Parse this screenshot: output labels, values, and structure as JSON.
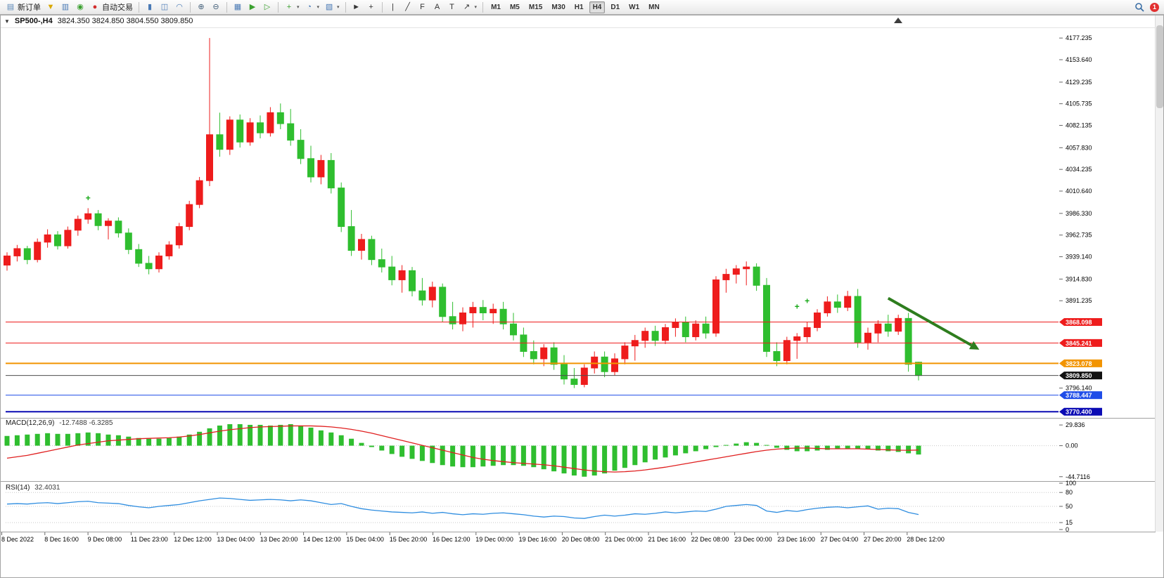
{
  "toolbar": {
    "caret_glyph": "▾",
    "groups": [
      {
        "name": "trade-group",
        "items": [
          {
            "name": "new-order-button",
            "glyph": "▤",
            "color": "#5b87b7",
            "label": "新订单"
          },
          {
            "name": "favorites-icon",
            "glyph": "▼",
            "color": "#d9a800"
          },
          {
            "name": "depth-of-market-icon",
            "glyph": "▥",
            "color": "#4a7ab5"
          },
          {
            "name": "community-icon",
            "glyph": "◉",
            "color": "#3aa02f"
          },
          {
            "name": "autotrade-button",
            "glyph": "●",
            "color": "#d22c2c",
            "label": "自动交易"
          }
        ]
      },
      {
        "name": "chart-type-group",
        "items": [
          {
            "name": "bar-chart-icon",
            "glyph": "▮",
            "color": "#4a7ab5"
          },
          {
            "name": "candlestick-chart-icon",
            "glyph": "◫",
            "color": "#4a7ab5"
          },
          {
            "name": "line-chart-icon",
            "glyph": "◠",
            "color": "#4a7ab5"
          }
        ]
      },
      {
        "name": "zoom-group",
        "items": [
          {
            "name": "zoom-in-icon",
            "glyph": "⊕",
            "color": "#44607a"
          },
          {
            "name": "zoom-out-icon",
            "glyph": "⊖",
            "color": "#44607a"
          }
        ]
      },
      {
        "name": "window-group",
        "items": [
          {
            "name": "tile-windows-icon",
            "glyph": "▦",
            "color": "#4a7ab5"
          },
          {
            "name": "auto-scroll-icon",
            "glyph": "▶",
            "color": "#3aa02f"
          },
          {
            "name": "chart-shift-icon",
            "glyph": "▷",
            "color": "#3aa02f"
          }
        ]
      },
      {
        "name": "chart-tools-group",
        "items": [
          {
            "name": "new-chart-icon",
            "glyph": "+",
            "color": "#3aa02f",
            "caret": true
          },
          {
            "name": "periods-icon",
            "glyph": "◔",
            "color": "#4a7ab5",
            "caret": true
          },
          {
            "name": "templates-icon",
            "glyph": "▧",
            "color": "#4a7ab5",
            "caret": true
          }
        ]
      },
      {
        "name": "cursor-group",
        "items": [
          {
            "name": "cursor-icon",
            "glyph": "►",
            "color": "#333333"
          },
          {
            "name": "crosshair-icon",
            "glyph": "+",
            "color": "#333333"
          }
        ]
      },
      {
        "name": "objects-group",
        "items": [
          {
            "name": "vertical-line-icon",
            "glyph": "|",
            "color": "#333333"
          },
          {
            "name": "trendline-icon",
            "glyph": "╱",
            "color": "#333333"
          },
          {
            "name": "fibonacci-icon",
            "glyph": "F",
            "color": "#333333"
          },
          {
            "name": "text-icon",
            "glyph": "A",
            "color": "#333333"
          },
          {
            "name": "label-icon",
            "glyph": "T",
            "color": "#333333"
          },
          {
            "name": "shapes-icon",
            "glyph": "↗",
            "color": "#333333",
            "caret": true
          }
        ]
      }
    ],
    "timeframes": [
      "M1",
      "M5",
      "M15",
      "M30",
      "H1",
      "H4",
      "D1",
      "W1",
      "MN"
    ],
    "active_timeframe": "H4",
    "notification_badge": "1"
  },
  "titlebar": {
    "collapse_icon": "▼",
    "symbol_period": "SP500-,H4",
    "ohlc": "3824.350 3824.850 3804.550 3809.850"
  },
  "indicators": {
    "macd_label": "MACD(12,26,9)",
    "macd_values": "-12.7488 -6.3285",
    "rsi_label": "RSI(14)",
    "rsi_value": "32.4031"
  },
  "chart_data": {
    "type": "candlestick",
    "symbol": "SP500-",
    "timeframe": "H4",
    "current_ohlc": {
      "open": 3824.35,
      "high": 3824.85,
      "low": 3804.55,
      "close": 3809.85
    },
    "colors": {
      "up": "#ee1c1c",
      "down": "#2fbe2f",
      "macd_hist": "#2fbe2f",
      "macd_signal": "#e02020",
      "rsi_line": "#2e8de0",
      "arrow": "#2e7d1e"
    },
    "price_range": {
      "max": 4185,
      "min": 3766
    },
    "candles": [
      [
        3930,
        3944,
        3924,
        3940
      ],
      [
        3940,
        3952,
        3934,
        3948
      ],
      [
        3948,
        3951,
        3931,
        3936
      ],
      [
        3936,
        3959,
        3933,
        3955
      ],
      [
        3955,
        3969,
        3949,
        3963
      ],
      [
        3963,
        3967,
        3947,
        3951
      ],
      [
        3951,
        3972,
        3948,
        3968
      ],
      [
        3968,
        3984,
        3962,
        3980
      ],
      [
        3980,
        3992,
        3975,
        3986
      ],
      [
        3986,
        3990,
        3968,
        3973
      ],
      [
        3973,
        3981,
        3958,
        3978
      ],
      [
        3978,
        3982,
        3960,
        3965
      ],
      [
        3965,
        3970,
        3942,
        3947
      ],
      [
        3947,
        3953,
        3928,
        3932
      ],
      [
        3932,
        3940,
        3920,
        3926
      ],
      [
        3926,
        3944,
        3922,
        3940
      ],
      [
        3940,
        3956,
        3936,
        3952
      ],
      [
        3952,
        3976,
        3948,
        3972
      ],
      [
        3972,
        4000,
        3968,
        3996
      ],
      [
        3996,
        4026,
        3992,
        4022
      ],
      [
        4022,
        4177.235,
        4016,
        4072
      ],
      [
        4072,
        4096,
        4048,
        4056
      ],
      [
        4056,
        4092,
        4050,
        4088
      ],
      [
        4088,
        4094,
        4058,
        4064
      ],
      [
        4064,
        4090,
        4060,
        4085
      ],
      [
        4085,
        4093,
        4068,
        4074
      ],
      [
        4074,
        4102,
        4070,
        4096
      ],
      [
        4096,
        4106,
        4078,
        4084
      ],
      [
        4084,
        4100,
        4060,
        4066
      ],
      [
        4066,
        4078,
        4040,
        4046
      ],
      [
        4046,
        4060,
        4020,
        4026
      ],
      [
        4026,
        4050,
        4018,
        4044
      ],
      [
        4044,
        4052,
        4008,
        4014
      ],
      [
        4014,
        4020,
        3966,
        3972
      ],
      [
        3972,
        3990,
        3940,
        3946
      ],
      [
        3946,
        3964,
        3936,
        3958
      ],
      [
        3958,
        3962,
        3930,
        3936
      ],
      [
        3936,
        3948,
        3922,
        3928
      ],
      [
        3928,
        3940,
        3908,
        3914
      ],
      [
        3914,
        3930,
        3900,
        3924
      ],
      [
        3924,
        3928,
        3896,
        3902
      ],
      [
        3902,
        3916,
        3886,
        3892
      ],
      [
        3892,
        3912,
        3884,
        3906
      ],
      [
        3906,
        3910,
        3868,
        3874
      ],
      [
        3874,
        3890,
        3860,
        3866
      ],
      [
        3866,
        3884,
        3858,
        3878
      ],
      [
        3878,
        3890,
        3862,
        3884
      ],
      [
        3884,
        3892,
        3870,
        3878
      ],
      [
        3878,
        3888,
        3866,
        3882
      ],
      [
        3882,
        3890,
        3860,
        3866
      ],
      [
        3866,
        3878,
        3848,
        3854
      ],
      [
        3854,
        3862,
        3830,
        3836
      ],
      [
        3836,
        3848,
        3822,
        3828
      ],
      [
        3828,
        3844,
        3820,
        3840
      ],
      [
        3840,
        3846,
        3816,
        3822
      ],
      [
        3822,
        3832,
        3800,
        3806
      ],
      [
        3806,
        3818,
        3796.14,
        3800
      ],
      [
        3800,
        3822,
        3797,
        3818
      ],
      [
        3818,
        3836,
        3812,
        3830
      ],
      [
        3830,
        3836,
        3808,
        3814
      ],
      [
        3814,
        3834,
        3810,
        3828
      ],
      [
        3828,
        3846,
        3822,
        3842
      ],
      [
        3842,
        3854,
        3826,
        3848
      ],
      [
        3848,
        3862,
        3840,
        3858
      ],
      [
        3858,
        3864,
        3842,
        3848
      ],
      [
        3848,
        3866,
        3844,
        3862
      ],
      [
        3862,
        3872,
        3852,
        3868
      ],
      [
        3868,
        3874,
        3846,
        3852
      ],
      [
        3852,
        3870,
        3848,
        3866
      ],
      [
        3866,
        3874,
        3850,
        3856
      ],
      [
        3856,
        3918,
        3852,
        3914
      ],
      [
        3914,
        3926,
        3900,
        3920
      ],
      [
        3920,
        3930,
        3910,
        3926
      ],
      [
        3926,
        3934,
        3908,
        3928
      ],
      [
        3928,
        3932,
        3902,
        3908
      ],
      [
        3908,
        3916,
        3830,
        3836
      ],
      [
        3836,
        3846,
        3820,
        3826
      ],
      [
        3826,
        3852,
        3822,
        3848
      ],
      [
        3848,
        3856,
        3828,
        3852
      ],
      [
        3852,
        3868,
        3846,
        3862
      ],
      [
        3862,
        3882,
        3858,
        3878
      ],
      [
        3878,
        3896,
        3874,
        3890
      ],
      [
        3890,
        3898,
        3878,
        3884
      ],
      [
        3884,
        3902,
        3880,
        3896
      ],
      [
        3896,
        3904,
        3840,
        3846
      ],
      [
        3846,
        3862,
        3838,
        3856
      ],
      [
        3856,
        3870,
        3846,
        3866
      ],
      [
        3866,
        3876,
        3852,
        3858
      ],
      [
        3858,
        3876,
        3854,
        3872
      ],
      [
        3872,
        3878,
        3814,
        3822
      ],
      [
        3824.35,
        3824.85,
        3804.55,
        3809.85
      ]
    ],
    "hlines": [
      {
        "label": "3868.098",
        "price": 3868.098,
        "color": "#ee1c1c",
        "width": 1
      },
      {
        "label": "3845.241",
        "price": 3845.241,
        "color": "#ee1c1c",
        "width": 1
      },
      {
        "label": "3823.078",
        "price": 3823.078,
        "color": "#f29400",
        "width": 2
      },
      {
        "label": "3809.850",
        "price": 3809.85,
        "color": "#4d4d4d",
        "label_bg": "#111111",
        "width": 1
      },
      {
        "label": "3788.447",
        "price": 3788.447,
        "color": "#1f4de8",
        "width": 1
      },
      {
        "label": "3770.400",
        "price": 3770.4,
        "color": "#0b0bb4",
        "width": 2
      }
    ],
    "price_ticks": [
      "4177.235",
      "4153.640",
      "4129.235",
      "4105.735",
      "4082.135",
      "4057.830",
      "4034.235",
      "4010.640",
      "3986.330",
      "3962.735",
      "3939.140",
      "3914.830",
      "3891.235",
      "3796.140"
    ],
    "time_labels": [
      "8 Dec 2022",
      "8 Dec 16:00",
      "9 Dec 08:00",
      "11 Dec 23:00",
      "12 Dec 12:00",
      "13 Dec 04:00",
      "13 Dec 20:00",
      "14 Dec 12:00",
      "15 Dec 04:00",
      "15 Dec 20:00",
      "16 Dec 12:00",
      "19 Dec 00:00",
      "19 Dec 16:00",
      "20 Dec 08:00",
      "21 Dec 00:00",
      "21 Dec 16:00",
      "22 Dec 08:00",
      "23 Dec 00:00",
      "23 Dec 16:00",
      "27 Dec 04:00",
      "27 Dec 20:00",
      "28 Dec 12:00"
    ],
    "macd": {
      "params": "12,26,9",
      "axis_ticks": [
        "29.836",
        "0.00",
        "-44.7116"
      ],
      "histogram": [
        14,
        15,
        16,
        17,
        18,
        17,
        17,
        18,
        19,
        18,
        16,
        15,
        13,
        11,
        10,
        10,
        11,
        13,
        16,
        20,
        25,
        29,
        31,
        31,
        30,
        30,
        29,
        30,
        31,
        29,
        26,
        22,
        19,
        15,
        10,
        4,
        -2,
        -7,
        -12,
        -16,
        -19,
        -22,
        -25,
        -28,
        -30,
        -31,
        -31,
        -30,
        -29,
        -28,
        -28,
        -29,
        -31,
        -34,
        -37,
        -40,
        -43,
        -44.71,
        -43,
        -40,
        -36,
        -32,
        -28,
        -24,
        -20,
        -17,
        -14,
        -11,
        -8,
        -5,
        -2,
        1,
        3,
        5,
        4,
        1,
        -3,
        -6,
        -8,
        -8,
        -7,
        -6,
        -5,
        -4,
        -4,
        -5,
        -7,
        -8,
        -9,
        -11,
        -12.75
      ],
      "signal": [
        -18,
        -16,
        -14,
        -11,
        -8,
        -5,
        -2,
        1,
        3,
        5,
        7,
        8,
        9,
        10,
        10.5,
        11,
        11.5,
        12.5,
        14,
        16,
        18.5,
        21,
        23,
        24.5,
        26,
        27,
        27.5,
        28,
        28.5,
        28.5,
        28.5,
        28,
        27,
        25.5,
        23.5,
        21,
        18,
        14.5,
        11,
        7.5,
        4,
        0.5,
        -3,
        -6.5,
        -10,
        -13.5,
        -17,
        -19.5,
        -21.5,
        -23,
        -24.5,
        -25.5,
        -26.5,
        -27.5,
        -29,
        -31,
        -33,
        -35,
        -36.5,
        -37.5,
        -38,
        -37.5,
        -36.5,
        -35,
        -33,
        -31,
        -28.5,
        -26,
        -23.5,
        -21,
        -18.5,
        -16,
        -13.5,
        -11,
        -8.5,
        -6.5,
        -5,
        -4,
        -3.5,
        -3.5,
        -4,
        -4.5,
        -4.5,
        -4.5,
        -4.5,
        -5,
        -5.5,
        -6,
        -6.5,
        -6.6,
        -6.33
      ]
    },
    "rsi": {
      "period": 14,
      "axis_ticks": [
        "100",
        "80",
        "50",
        "15",
        "0"
      ],
      "levels": [
        80,
        50,
        15
      ],
      "values": [
        55,
        56,
        55,
        57,
        58,
        56,
        58,
        60,
        61,
        58,
        57,
        56,
        52,
        49,
        47,
        50,
        52,
        54,
        58,
        62,
        65,
        68,
        67,
        65,
        63,
        64,
        65,
        64,
        62,
        64,
        62,
        58,
        54,
        56,
        50,
        45,
        42,
        40,
        38,
        37,
        36,
        38,
        35,
        37,
        34,
        32,
        34,
        33,
        35,
        36,
        34,
        32,
        29,
        27,
        29,
        28,
        25,
        24,
        28,
        31,
        29,
        31,
        34,
        33,
        35,
        38,
        36,
        38,
        40,
        39,
        44,
        50,
        52,
        54,
        52,
        40,
        37,
        41,
        39,
        43,
        46,
        48,
        49,
        47,
        49,
        51,
        44,
        46,
        45,
        37,
        32.4
      ]
    },
    "markers": [
      {
        "index": 8,
        "price": 4000
      },
      {
        "index": 78,
        "price": 3882
      },
      {
        "index": 79,
        "price": 3888
      }
    ],
    "arrow": {
      "from_index": 87,
      "from_price": 3894,
      "to_index": 96,
      "to_price": 3838
    }
  }
}
